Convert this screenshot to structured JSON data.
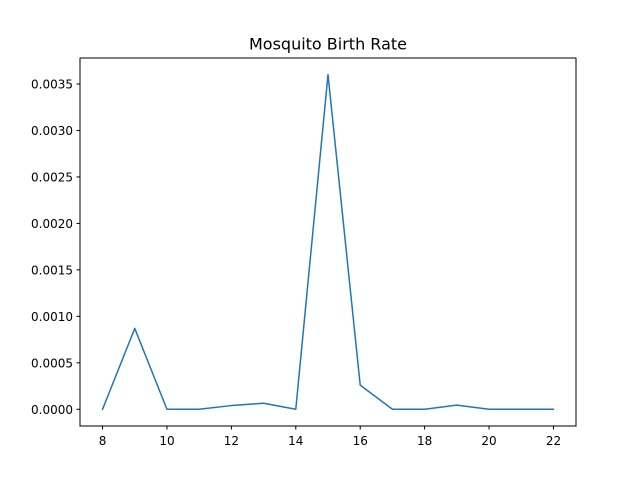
{
  "chart_data": {
    "type": "line",
    "title": "Mosquito Birth Rate",
    "xlabel": "",
    "ylabel": "",
    "x": [
      8,
      9,
      10,
      11,
      12,
      13,
      14,
      15,
      16,
      17,
      18,
      19,
      20,
      21,
      22
    ],
    "series": [
      {
        "values": [
          0.0,
          0.00087,
          0.0,
          0.0,
          4e-05,
          6.5e-05,
          0.0,
          0.0036,
          0.00026,
          0.0,
          0.0,
          4.5e-05,
          0.0,
          0.0,
          0.0
        ],
        "color": "#1f77b4"
      }
    ],
    "xlim": [
      7.3,
      22.7
    ],
    "ylim": [
      -0.00018,
      0.00378
    ],
    "xticks": [
      8,
      10,
      12,
      14,
      16,
      18,
      20,
      22
    ],
    "xtick_labels": [
      "8",
      "10",
      "12",
      "14",
      "16",
      "18",
      "20",
      "22"
    ],
    "yticks": [
      0.0,
      0.0005,
      0.001,
      0.0015,
      0.002,
      0.0025,
      0.003,
      0.0035
    ],
    "ytick_labels": [
      "0.0000",
      "0.0005",
      "0.0010",
      "0.0015",
      "0.0020",
      "0.0025",
      "0.0030",
      "0.0035"
    ],
    "grid": false,
    "legend": "none"
  }
}
